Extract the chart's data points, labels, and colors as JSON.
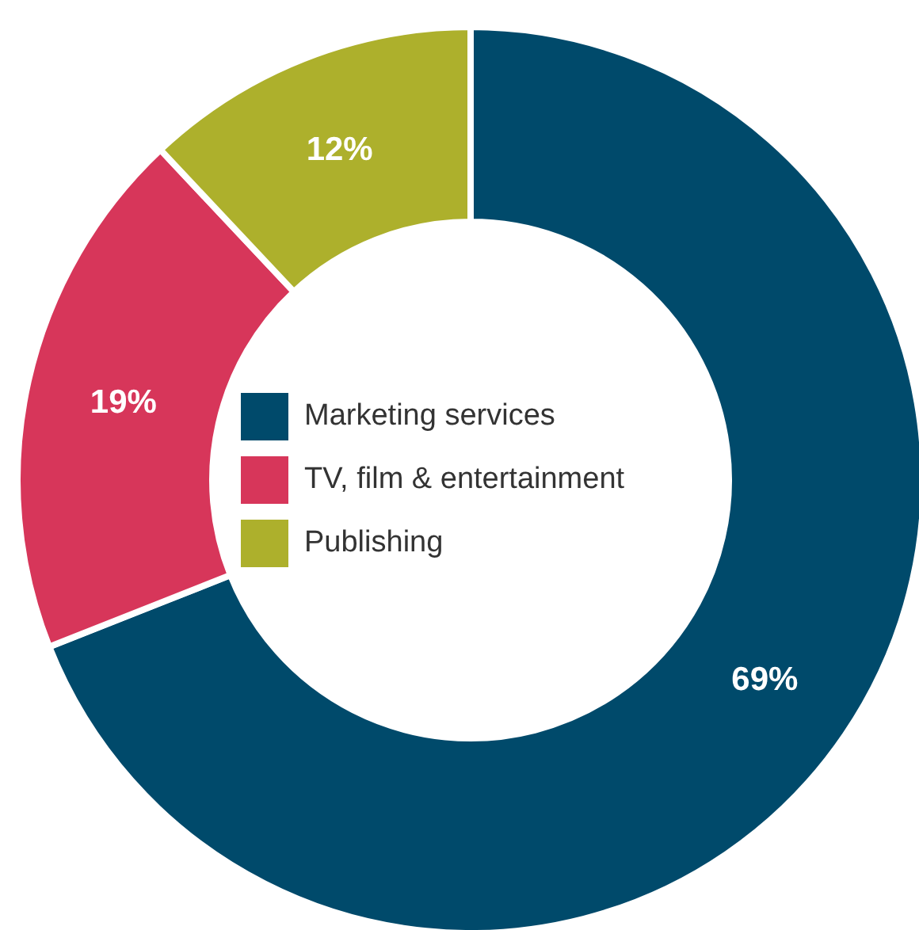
{
  "chart_data": {
    "type": "donut",
    "categories": [
      "Marketing services",
      "TV, film & entertainment",
      "Publishing"
    ],
    "values": [
      69,
      19,
      12
    ],
    "colors": [
      "#004a6b",
      "#d7365a",
      "#adb02c"
    ],
    "value_labels": [
      "69%",
      "19%",
      "12%"
    ],
    "legend": "center"
  }
}
